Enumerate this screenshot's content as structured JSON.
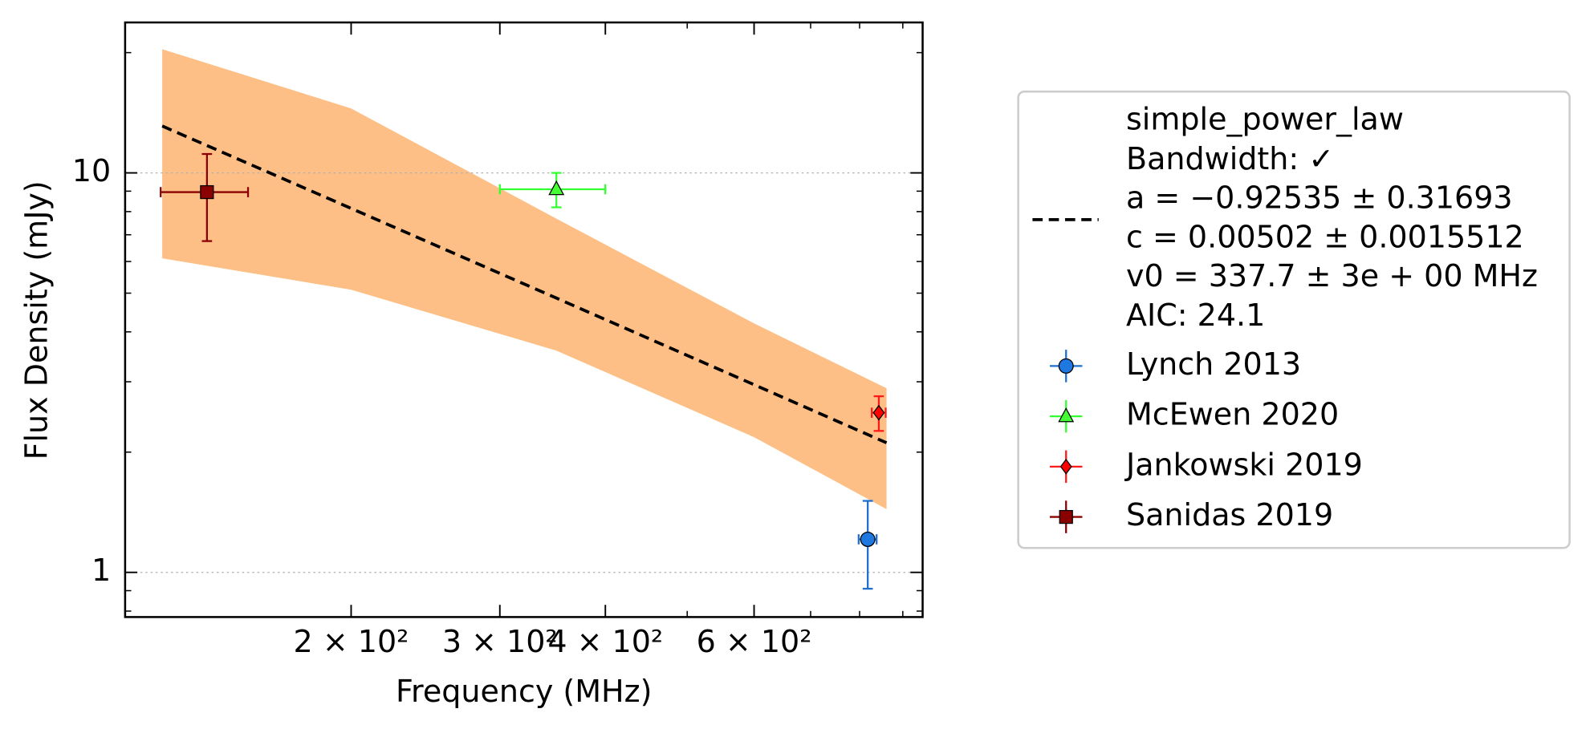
{
  "chart_data": {
    "type": "scatter",
    "xlabel": "Frequency (MHz)",
    "ylabel": "Flux Density (mJy)",
    "xscale": "log",
    "yscale": "log",
    "xlim": [
      108,
      950
    ],
    "ylim": [
      0.773,
      23.8
    ],
    "xticks": [
      {
        "value": 200,
        "label": "2 × 10²"
      },
      {
        "value": 300,
        "label": "3 × 10²"
      },
      {
        "value": 400,
        "label": "4 × 10²"
      },
      {
        "value": 600,
        "label": "6 × 10²"
      }
    ],
    "xminorticks": [
      500,
      700,
      800,
      900
    ],
    "yticks": [
      1,
      10
    ],
    "yminorticks": [
      0.8,
      0.9,
      2,
      3,
      4,
      5,
      6,
      7,
      8,
      9,
      20
    ],
    "grid": true,
    "fit": {
      "name": "simple_power_law",
      "legend_lines": [
        "Bandwidth: ✓",
        "a = −0.92535 ± 0.31693",
        "c = 0.00502 ± 0.0015512",
        "v0 = 337.7 ± 3e + 00 MHz",
        "AIC: 24.1"
      ],
      "color": "#000000",
      "band_color": "#fdbf85",
      "x": [
        119.5,
        200,
        350,
        600,
        861
      ],
      "values": [
        13.1,
        8.15,
        4.86,
        2.95,
        2.11
      ],
      "band_upper": [
        20.4,
        14.5,
        7.68,
        4.2,
        2.89
      ],
      "band_lower": [
        6.11,
        5.1,
        3.59,
        2.18,
        1.44
      ]
    },
    "series": [
      {
        "name": "Lynch 2013",
        "color": "#1f6fd0",
        "face": "#1f77e0",
        "marker": "circle",
        "x": [
          818
        ],
        "values": [
          1.21
        ],
        "xerr": [
          20
        ],
        "yerr": [
          0.3
        ]
      },
      {
        "name": "McEwen 2020",
        "color": "#33ff33",
        "face": "#44ff33",
        "marker": "triangle",
        "x": [
          350
        ],
        "values": [
          9.1
        ],
        "xerr": [
          50
        ],
        "yerr": [
          0.9
        ]
      },
      {
        "name": "Jankowski 2019",
        "color": "#ff1a1a",
        "face": "#ff0000",
        "marker": "diamond",
        "x": [
          843
        ],
        "values": [
          2.51
        ],
        "xerr": [
          16
        ],
        "yerr": [
          0.25
        ]
      },
      {
        "name": "Sanidas 2019",
        "color": "#8b0000",
        "face": "#8b0000",
        "marker": "square",
        "x": [
          135
        ],
        "values": [
          8.95
        ],
        "xerr": [
          16
        ],
        "yerr": [
          2.2
        ]
      }
    ]
  }
}
